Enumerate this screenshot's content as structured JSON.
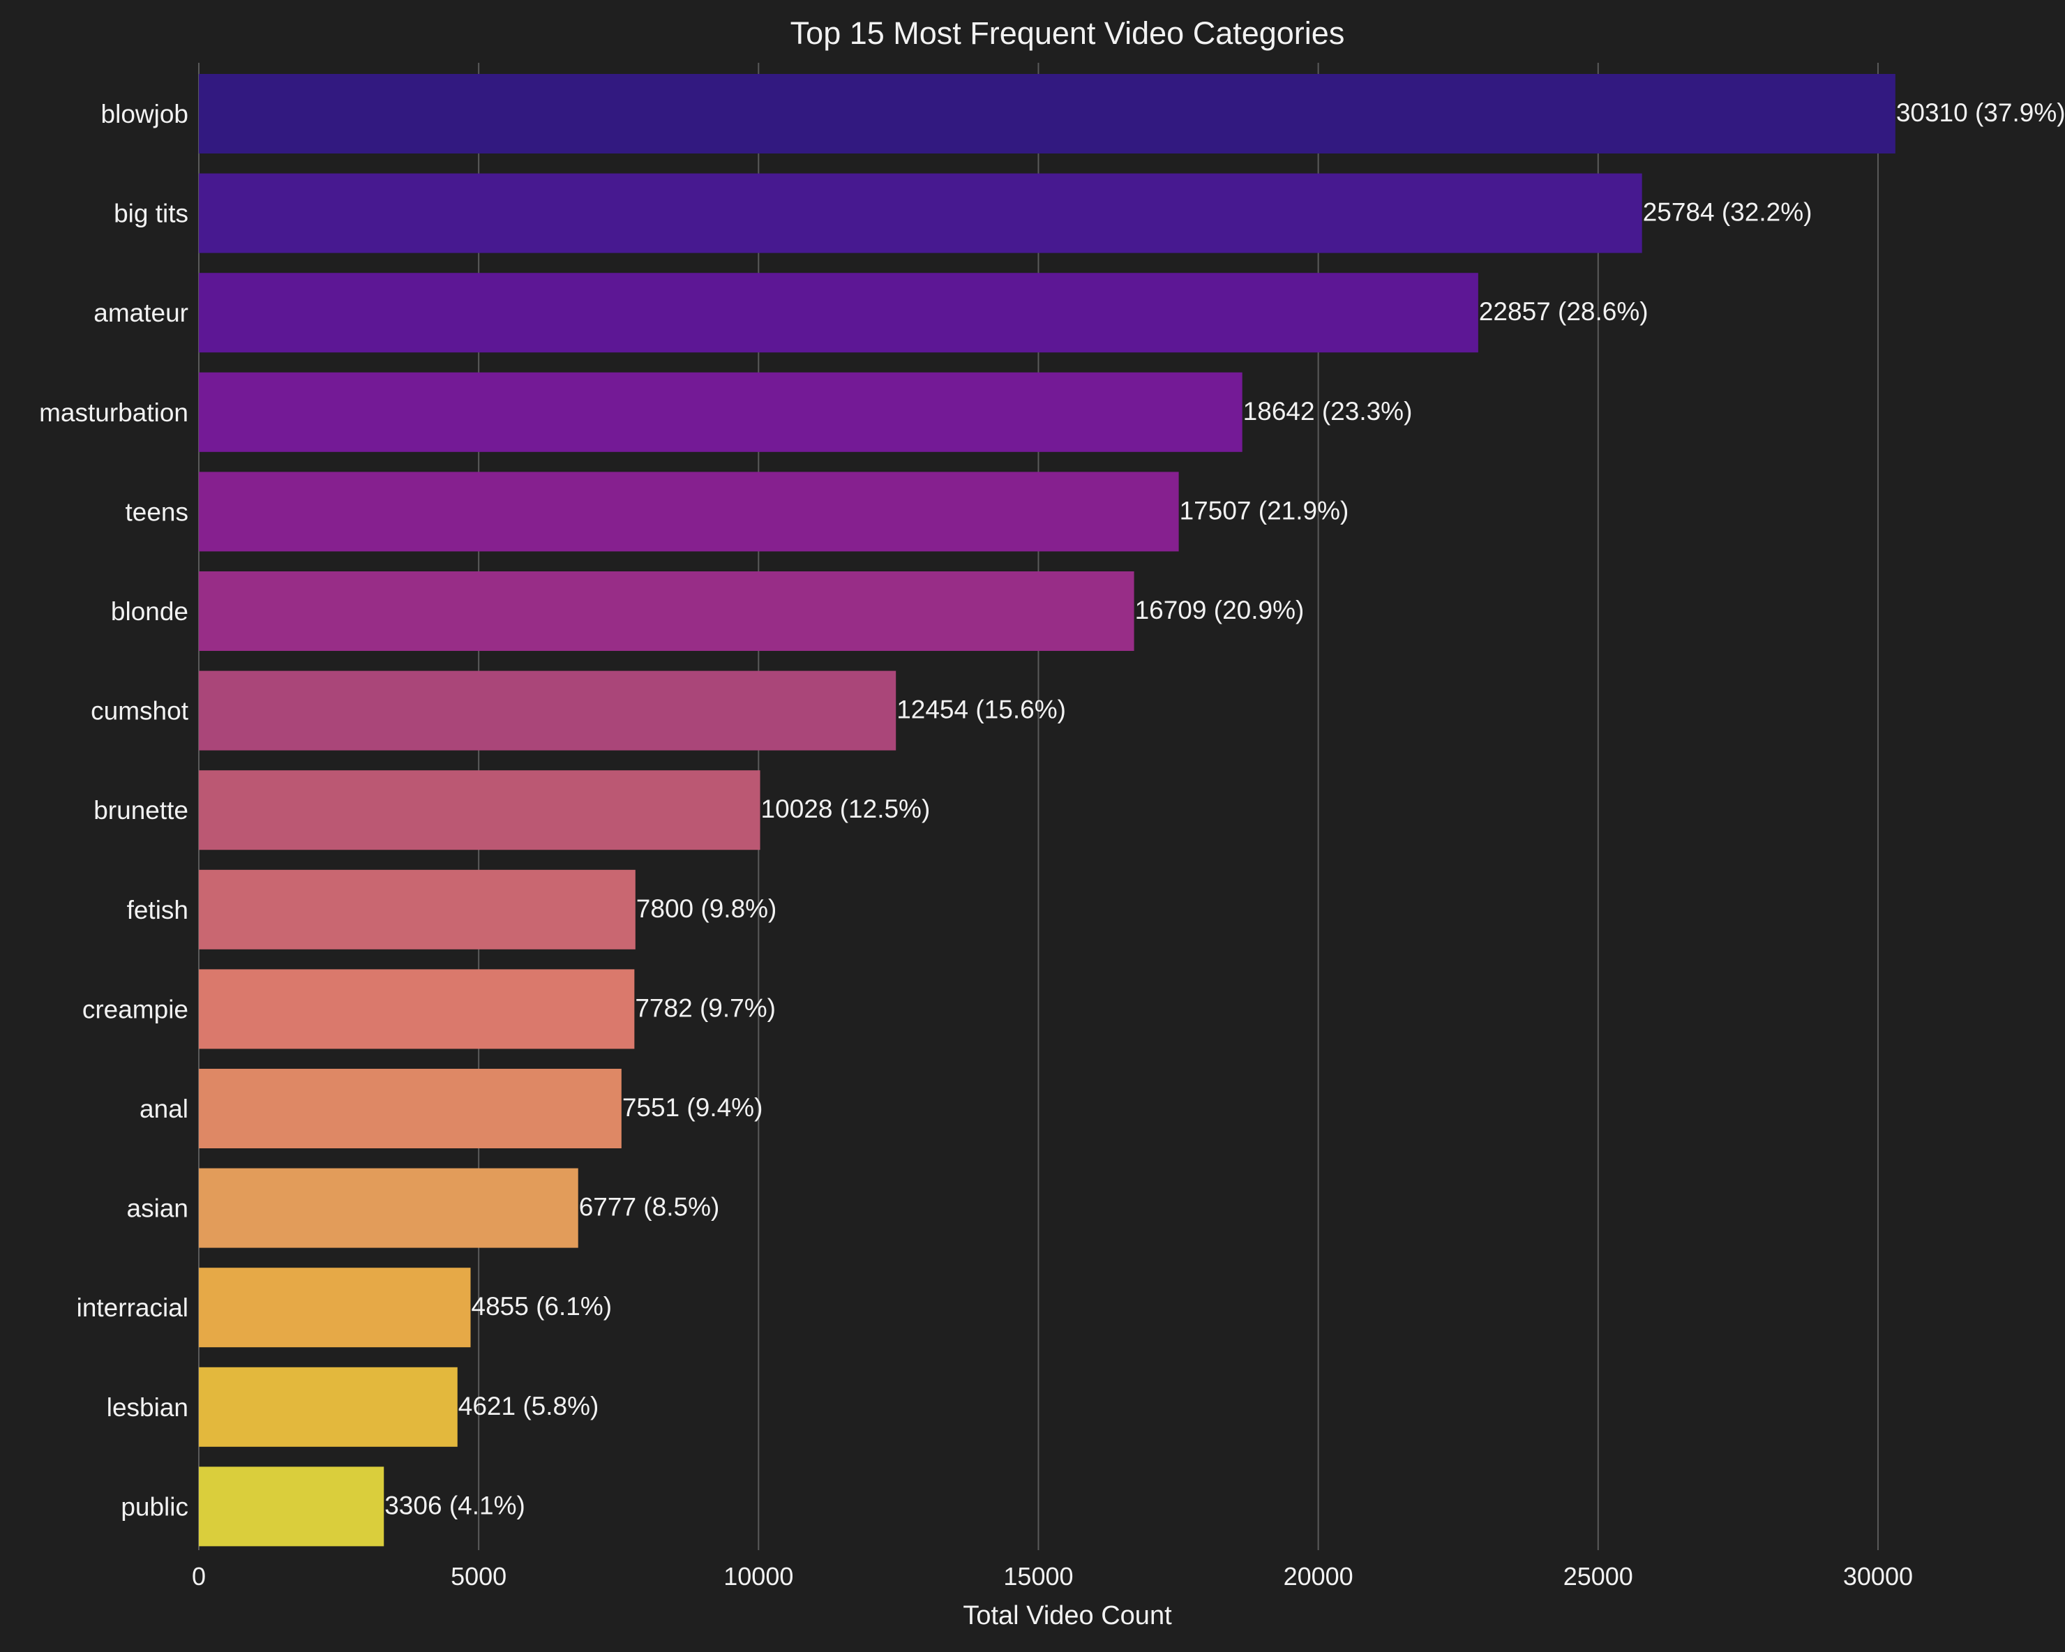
{
  "chart_data": {
    "type": "bar",
    "orientation": "horizontal",
    "title": "Top 15 Most Frequent Video Categories",
    "xlabel": "Total Video Count",
    "ylabel": "",
    "xlim": [
      0,
      33341
    ],
    "xticks": [
      0,
      5000,
      10000,
      15000,
      20000,
      25000,
      30000
    ],
    "grid": "vertical",
    "background": "#1f1f1f",
    "grid_color": "#5a5a5a",
    "text_color": "#f2f2f2",
    "categories": [
      "blowjob",
      "big tits",
      "amateur",
      "masturbation",
      "teens",
      "blonde",
      "cumshot",
      "brunette",
      "fetish",
      "creampie",
      "anal",
      "asian",
      "interracial",
      "lesbian",
      "public"
    ],
    "values": [
      30310,
      25784,
      22857,
      18642,
      17507,
      16709,
      12454,
      10028,
      7800,
      7782,
      7551,
      6777,
      4855,
      4621,
      3306
    ],
    "labels": [
      "30310 (37.9%)",
      "25784 (32.2%)",
      "22857 (28.6%)",
      "18642 (23.3%)",
      "17507 (21.9%)",
      "16709 (20.9%)",
      "12454 (15.6%)",
      "10028 (12.5%)",
      "7800 (9.8%)",
      "7782 (9.7%)",
      "7551 (9.4%)",
      "6777 (8.5%)",
      "4855 (6.1%)",
      "4621 (5.8%)",
      "3306 (4.1%)"
    ],
    "colors": [
      "#321980",
      "#471990",
      "#5d1795",
      "#741a96",
      "#86208f",
      "#982d87",
      "#aa4679",
      "#bb5873",
      "#c96771",
      "#da796c",
      "#de8865",
      "#e29c5a",
      "#e6a947",
      "#e3b83d",
      "#dace3c"
    ]
  }
}
